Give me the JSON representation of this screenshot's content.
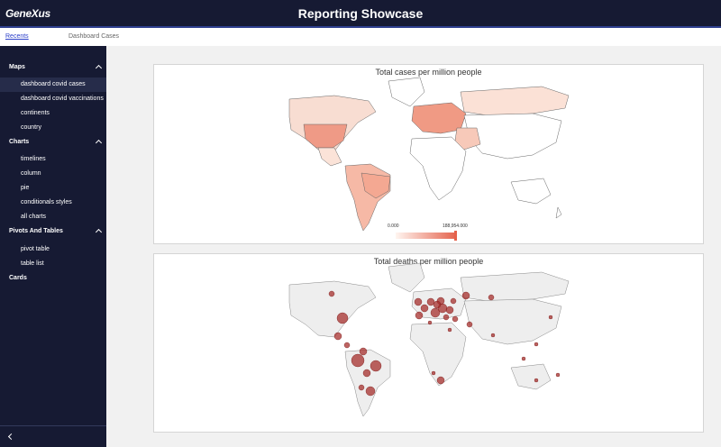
{
  "header": {
    "logo": "GeneXus",
    "title": "Reporting Showcase"
  },
  "breadcrumb": {
    "link": "Recents",
    "current": "Dashboard Cases"
  },
  "sidebar": {
    "sections": [
      {
        "label": "Maps",
        "items": [
          {
            "label": "dashboard covid cases",
            "active": true
          },
          {
            "label": "dashboard covid vaccinations"
          },
          {
            "label": "continents"
          },
          {
            "label": "country"
          }
        ]
      },
      {
        "label": "Charts",
        "items": [
          {
            "label": "timelines"
          },
          {
            "label": "column"
          },
          {
            "label": "pie"
          },
          {
            "label": "conditionals styles"
          },
          {
            "label": "all charts"
          }
        ]
      },
      {
        "label": "Pivots And Tables",
        "items": [
          {
            "label": "pivot table"
          },
          {
            "label": "table list"
          }
        ]
      },
      {
        "label": "Cards",
        "items": []
      }
    ],
    "collapse_icon": "chevron-left-icon"
  },
  "charts": {
    "cases": {
      "title": "Total cases per million people",
      "scale_min": "0.000",
      "scale_max": "188,954.000"
    },
    "deaths": {
      "title": "Total deaths per million people"
    }
  },
  "colors": {
    "choropleth_low": "#fff5f0",
    "choropleth_high": "#e4614b",
    "bubble": "#a42826"
  }
}
